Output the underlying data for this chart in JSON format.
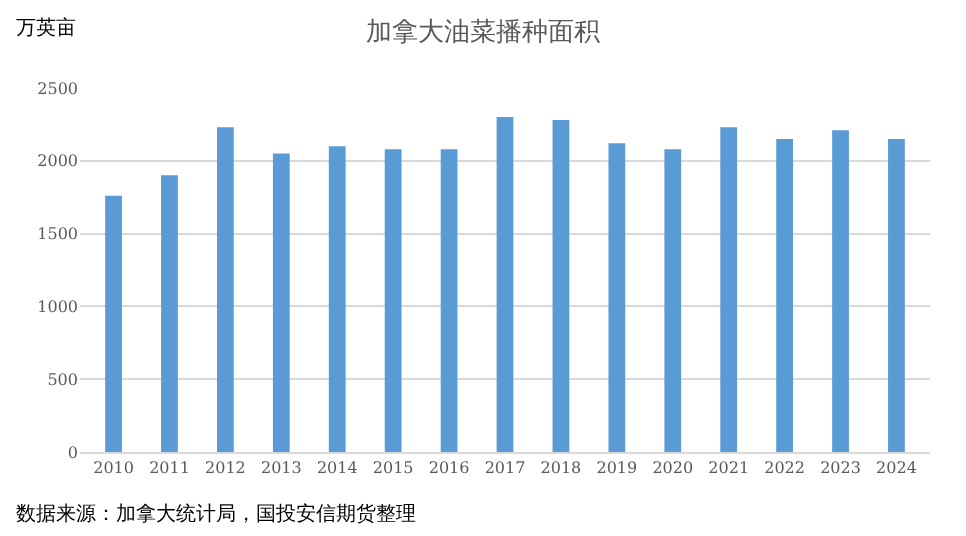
{
  "chart_data": {
    "type": "bar",
    "title": "加拿大油菜播种面积",
    "ylabel": "万英亩",
    "categories": [
      "2010",
      "2011",
      "2012",
      "2013",
      "2014",
      "2015",
      "2016",
      "2017",
      "2018",
      "2019",
      "2020",
      "2021",
      "2022",
      "2023",
      "2024"
    ],
    "values": [
      1760,
      1900,
      2230,
      2050,
      2100,
      2080,
      2080,
      2300,
      2280,
      2120,
      2080,
      2230,
      2150,
      2210,
      2150
    ],
    "color": "#5b9bd5",
    "ylim": [
      0,
      2500
    ],
    "yticks": [
      0,
      500,
      1000,
      1500,
      2000,
      2500
    ],
    "grid": "y",
    "annotations": [
      "数据来源：加拿大统计局，国投安信期货整理"
    ]
  }
}
